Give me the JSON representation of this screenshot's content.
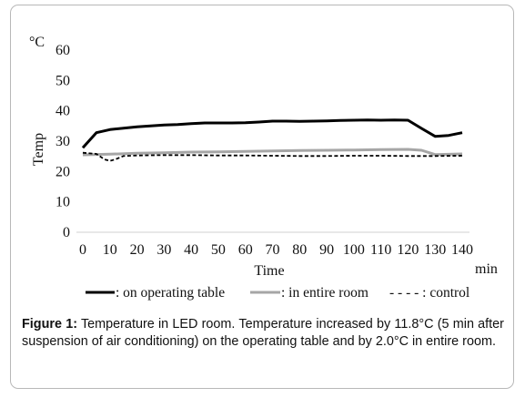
{
  "figure": {
    "label": "Figure 1:",
    "text": "Temperature in LED room. Temperature increased by 11.8°C (5 min after suspension of air conditioning) on the operating table and by 2.0°C in entire room."
  },
  "chart_data": {
    "type": "line",
    "ylabel": "Temp",
    "yunit": "°C",
    "xlabel": "Time",
    "xunit": "min",
    "ylim": [
      0,
      60
    ],
    "xlim": [
      0,
      140
    ],
    "yticks": [
      0,
      10,
      20,
      30,
      40,
      50,
      60
    ],
    "xticks": [
      0,
      10,
      20,
      30,
      40,
      50,
      60,
      70,
      80,
      90,
      100,
      110,
      120,
      130,
      140
    ],
    "grid": false,
    "legend_position": "bottom",
    "series": [
      {
        "name": ": on operating table",
        "color": "#000000",
        "style": "solid-thick",
        "x": [
          0,
          5,
          10,
          15,
          20,
          25,
          30,
          35,
          40,
          45,
          50,
          55,
          60,
          65,
          70,
          75,
          80,
          85,
          90,
          95,
          100,
          105,
          110,
          115,
          120,
          125,
          130,
          135,
          140
        ],
        "values": [
          27.8,
          32.8,
          33.8,
          34.3,
          34.7,
          35.0,
          35.3,
          35.5,
          35.8,
          36.0,
          36.0,
          36.0,
          36.1,
          36.3,
          36.6,
          36.6,
          36.5,
          36.6,
          36.7,
          36.8,
          36.9,
          37.0,
          36.9,
          37.0,
          36.9,
          34.2,
          31.6,
          31.9,
          32.8
        ]
      },
      {
        "name": ": in entire room",
        "color": "#a6a6a6",
        "style": "solid-thick",
        "x": [
          0,
          10,
          20,
          30,
          40,
          50,
          60,
          70,
          80,
          90,
          100,
          110,
          120,
          125,
          130,
          140
        ],
        "values": [
          25.5,
          25.7,
          26.0,
          26.2,
          26.4,
          26.5,
          26.6,
          26.8,
          26.9,
          27.0,
          27.1,
          27.2,
          27.3,
          27.0,
          25.6,
          25.8
        ]
      },
      {
        "name": "- - - - : control",
        "color": "#000000",
        "style": "dashed",
        "x": [
          0,
          5,
          8,
          10,
          12,
          15,
          20,
          30,
          40,
          50,
          60,
          70,
          80,
          90,
          100,
          110,
          120,
          130,
          140
        ],
        "values": [
          26.2,
          25.8,
          24.0,
          23.5,
          24.0,
          25.1,
          25.3,
          25.4,
          25.4,
          25.3,
          25.3,
          25.2,
          25.1,
          25.1,
          25.2,
          25.2,
          25.1,
          25.1,
          25.2
        ]
      }
    ]
  }
}
